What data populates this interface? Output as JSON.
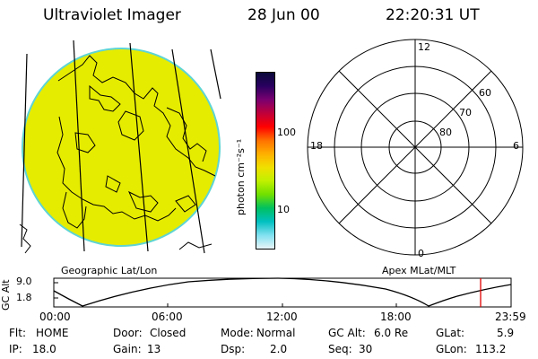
{
  "header": {
    "title": "Ultraviolet Imager",
    "date": "28 Jun 00",
    "time": "22:20:31 UT"
  },
  "image_panel": {
    "caption": "Geographic Lat/Lon",
    "disk_color": "#e6ec00",
    "rim_color": "#5ed4d4"
  },
  "colorbar": {
    "unit_label": "photon cm⁻²s⁻¹",
    "ticks": [
      "100",
      "10"
    ],
    "colors": [
      "#0a0a3a",
      "#2a0060",
      "#7a0070",
      "#c0003a",
      "#ff0000",
      "#ff7000",
      "#ffb000",
      "#f0e000",
      "#c0f000",
      "#70e000",
      "#00c060",
      "#00c0c0",
      "#80e0f0",
      "#e8f4f8"
    ]
  },
  "polar_panel": {
    "caption": "Apex MLat/MLT",
    "mlt_labels": {
      "top": "12",
      "left": "18",
      "right": "6",
      "bottom": "0"
    },
    "lat_labels": [
      "60",
      "70",
      "80"
    ]
  },
  "orbit_plot": {
    "ylabel": "GC Alt",
    "yticks": [
      "9.0",
      "1.8"
    ],
    "xticks": [
      "00:00",
      "06:00",
      "12:00",
      "18:00",
      "23:59"
    ],
    "marker_color": "#e00000"
  },
  "info": {
    "flt_label": "Flt:",
    "flt_value": "HOME",
    "ip_label": "IP:",
    "ip_value": "18.0",
    "door_label": "Door:",
    "door_value": "Closed",
    "gain_label": "Gain:",
    "gain_value": "13",
    "mode_label": "Mode:",
    "mode_value": "Normal",
    "dsp_label": "Dsp:",
    "dsp_value": "2.0",
    "gcalt_label": "GC Alt:",
    "gcalt_value": "6.0 Re",
    "seq_label": "Seq:",
    "seq_value": "30",
    "glat_label": "GLat:",
    "glat_value": "5.9",
    "glon_label": "GLon:",
    "glon_value": "113.2"
  }
}
